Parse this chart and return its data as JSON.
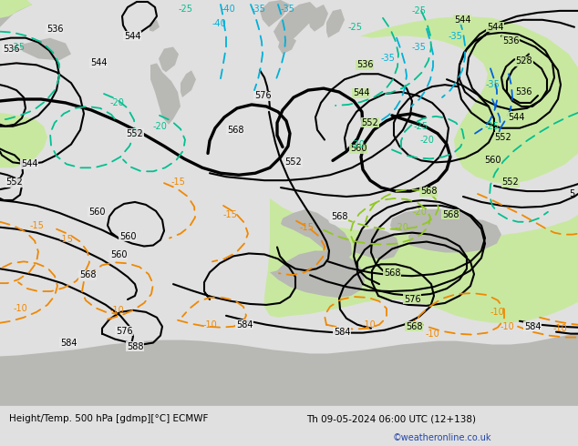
{
  "title_left": "Height/Temp. 500 hPa [gdmp][°C] ECMWF",
  "title_right": "Th 09-05-2024 06:00 UTC (12+138)",
  "credit": "©weatheronline.co.uk",
  "bg_color": "#e0e0e0",
  "sea_color": "#e8e8e8",
  "land_color_gray": "#b8b8b4",
  "land_color_green": "#c8e8a0",
  "bottom_bar_color": "#d8d8d8",
  "black": "#000000",
  "cyan": "#00b0d8",
  "teal": "#00c090",
  "lgreen": "#90c820",
  "orange": "#f08800",
  "blue": "#0060e0",
  "footer_blue": "#2244aa"
}
